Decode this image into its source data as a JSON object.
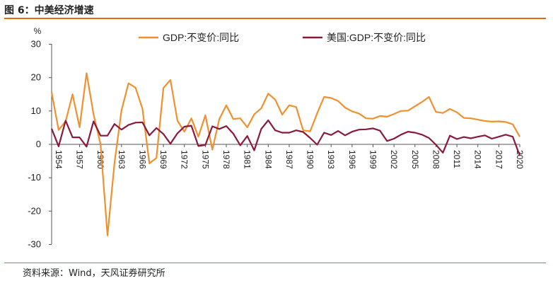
{
  "figure": {
    "title": "图 6：中美经济增速",
    "source": "资料来源：Wind，天风证券研究所"
  },
  "colors": {
    "china": "#f0902f",
    "us": "#8b1a3a",
    "accent": "#e36c0a"
  },
  "chart_data": {
    "type": "line",
    "unit_label": "%",
    "ylim": [
      -30,
      30
    ],
    "yticks": [
      30,
      20,
      10,
      0,
      -10,
      -20,
      -30
    ],
    "xlim": [
      1953,
      2020
    ],
    "xticks": [
      1954,
      1957,
      1960,
      1963,
      1966,
      1969,
      1972,
      1975,
      1978,
      1981,
      1984,
      1987,
      1990,
      1993,
      1996,
      1999,
      2002,
      2005,
      2008,
      2011,
      2014,
      2017,
      2020
    ],
    "grid": false,
    "legend_position": "top",
    "x": [
      1953,
      1954,
      1955,
      1956,
      1957,
      1958,
      1959,
      1960,
      1961,
      1962,
      1963,
      1964,
      1965,
      1966,
      1967,
      1968,
      1969,
      1970,
      1971,
      1972,
      1973,
      1974,
      1975,
      1976,
      1977,
      1978,
      1979,
      1980,
      1981,
      1982,
      1983,
      1984,
      1985,
      1986,
      1987,
      1988,
      1989,
      1990,
      1991,
      1992,
      1993,
      1994,
      1995,
      1996,
      1997,
      1998,
      1999,
      2000,
      2001,
      2002,
      2003,
      2004,
      2005,
      2006,
      2007,
      2008,
      2009,
      2010,
      2011,
      2012,
      2013,
      2014,
      2015,
      2016,
      2017,
      2018,
      2019,
      2020
    ],
    "series": [
      {
        "name": "GDP:不变价:同比",
        "values": [
          15.6,
          4.3,
          6.9,
          15.0,
          5.1,
          21.3,
          9.0,
          0.0,
          -27.3,
          -5.6,
          10.2,
          18.3,
          17.0,
          10.7,
          -5.7,
          -4.1,
          16.9,
          19.3,
          7.1,
          3.8,
          7.8,
          2.3,
          8.7,
          -1.6,
          7.6,
          11.7,
          7.6,
          7.8,
          5.1,
          9.0,
          10.8,
          15.2,
          13.4,
          8.9,
          11.7,
          11.2,
          4.2,
          3.9,
          9.3,
          14.2,
          13.9,
          13.0,
          11.0,
          9.9,
          9.2,
          7.8,
          7.7,
          8.5,
          8.3,
          9.1,
          10.0,
          10.1,
          11.4,
          12.7,
          14.2,
          9.7,
          9.4,
          10.6,
          9.6,
          7.9,
          7.8,
          7.4,
          7.0,
          6.8,
          6.9,
          6.7,
          6.0,
          2.3
        ]
      },
      {
        "name": "美国:GDP:不变价:同比",
        "values": [
          4.7,
          -0.6,
          7.1,
          2.1,
          2.1,
          -0.7,
          6.9,
          2.6,
          2.6,
          6.1,
          4.4,
          5.8,
          6.5,
          6.6,
          2.7,
          4.9,
          3.1,
          0.2,
          3.3,
          5.3,
          5.6,
          -0.5,
          -0.2,
          5.4,
          4.6,
          5.5,
          3.2,
          -0.3,
          2.5,
          -1.8,
          4.6,
          7.2,
          4.2,
          3.5,
          3.5,
          4.2,
          3.7,
          1.9,
          -0.1,
          3.5,
          2.8,
          4.0,
          2.7,
          3.8,
          4.4,
          4.5,
          4.8,
          4.1,
          1.0,
          1.7,
          2.9,
          3.8,
          3.5,
          2.9,
          1.9,
          -0.1,
          -2.5,
          2.6,
          1.6,
          2.2,
          1.8,
          2.3,
          2.7,
          1.7,
          2.3,
          2.9,
          2.3,
          -3.4
        ]
      }
    ]
  }
}
